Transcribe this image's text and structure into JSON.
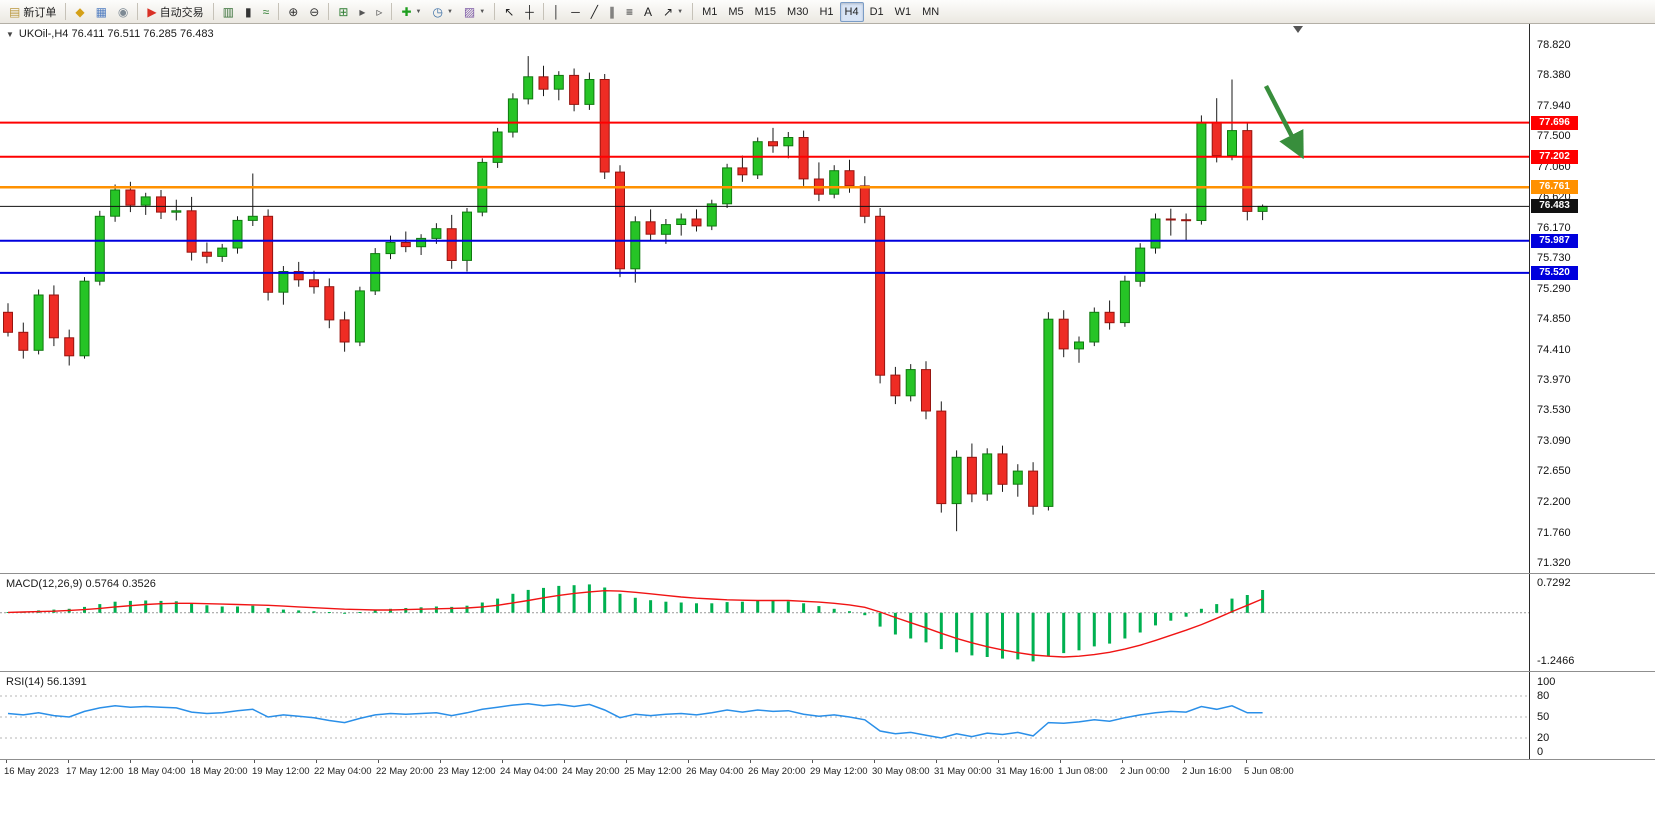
{
  "window": {
    "badge_count": "1"
  },
  "toolbar": {
    "items": [
      {
        "name": "new-order-button",
        "icon": "new-order-icon",
        "glyph": "▤",
        "glyph_color": "#b9973e",
        "label": "新订单"
      },
      {
        "sep": true
      },
      {
        "name": "charts-button",
        "icon": "chart-window-icon",
        "glyph": "◆",
        "glyph_color": "#d4a017"
      },
      {
        "name": "profiles-button",
        "icon": "profiles-icon",
        "glyph": "▦",
        "glyph_color": "#4f7cc0"
      },
      {
        "name": "data-window-button",
        "icon": "data-window-icon",
        "glyph": "◉",
        "glyph_color": "#7e8a94"
      },
      {
        "sep": true
      },
      {
        "name": "autotrading-button",
        "icon": "autotrading-icon",
        "glyph": "▶",
        "glyph_color": "#d93025",
        "label": "自动交易"
      },
      {
        "sep": true
      },
      {
        "name": "bar-chart-button",
        "icon": "bar-chart-icon",
        "glyph": "▥",
        "glyph_color": "#356e35"
      },
      {
        "name": "candlestick-chart-button",
        "icon": "candlestick-icon",
        "glyph": "▮",
        "glyph_color": "#333333"
      },
      {
        "name": "line-chart-button",
        "icon": "line-chart-icon",
        "glyph": "≈",
        "glyph_color": "#2f7d2f"
      },
      {
        "sep": true
      },
      {
        "name": "zoom-in-button",
        "icon": "zoom-in-icon",
        "glyph": "⊕",
        "glyph_color": "#333333"
      },
      {
        "name": "zoom-out-button",
        "icon": "zoom-out-icon",
        "glyph": "⊖",
        "glyph_color": "#333333"
      },
      {
        "sep": true
      },
      {
        "name": "tile-windows-button",
        "icon": "tile-windows-icon",
        "glyph": "⊞",
        "glyph_color": "#2e7d32"
      },
      {
        "name": "auto-scroll-button",
        "icon": "auto-scroll-icon",
        "glyph": "▸",
        "glyph_color": "#555555"
      },
      {
        "name": "chart-shift-button",
        "icon": "chart-shift-icon",
        "glyph": "▹",
        "glyph_color": "#555555"
      },
      {
        "sep": true
      },
      {
        "name": "indicators-button",
        "icon": "indicators-plus-icon",
        "glyph": "✚",
        "glyph_color": "#1e9e1e",
        "dropdown": true
      },
      {
        "name": "periods-button",
        "icon": "clock-icon",
        "glyph": "◷",
        "glyph_color": "#3a6ea5",
        "dropdown": true
      },
      {
        "name": "templates-button",
        "icon": "template-icon",
        "glyph": "▨",
        "glyph_color": "#7d5ba6",
        "dropdown": true
      },
      {
        "sep": true
      },
      {
        "name": "cursor-button",
        "icon": "cursor-icon",
        "glyph": "↖",
        "glyph_color": "#222222"
      },
      {
        "name": "crosshair-button",
        "icon": "crosshair-icon",
        "glyph": "┼",
        "glyph_color": "#222222"
      },
      {
        "sep": true
      },
      {
        "name": "vertical-line-button",
        "icon": "vertical-line-icon",
        "glyph": "│",
        "glyph_color": "#222222"
      },
      {
        "name": "horizontal-line-button",
        "icon": "horizontal-line-icon",
        "glyph": "─",
        "glyph_color": "#222222"
      },
      {
        "name": "trendline-button",
        "icon": "trendline-icon",
        "glyph": "╱",
        "glyph_color": "#222222"
      },
      {
        "name": "channel-button",
        "icon": "channel-icon",
        "glyph": "∥",
        "glyph_color": "#222222"
      },
      {
        "name": "fibonacci-button",
        "icon": "fibonacci-icon",
        "glyph": "≡",
        "glyph_color": "#222222"
      },
      {
        "name": "text-button",
        "icon": "text-icon",
        "glyph": "A",
        "glyph_color": "#222222"
      },
      {
        "name": "arrows-button",
        "icon": "arrow-objects-icon",
        "glyph": "↗",
        "glyph_color": "#222222",
        "dropdown": true
      },
      {
        "sep": true
      },
      {
        "name": "timeframe-m1-button",
        "label": "M1"
      },
      {
        "name": "timeframe-m5-button",
        "label": "M5"
      },
      {
        "name": "timeframe-m15-button",
        "label": "M15"
      },
      {
        "name": "timeframe-m30-button",
        "label": "M30"
      },
      {
        "name": "timeframe-h1-button",
        "label": "H1"
      },
      {
        "name": "timeframe-h4-button",
        "label": "H4",
        "active": true
      },
      {
        "name": "timeframe-d1-button",
        "label": "D1"
      },
      {
        "name": "timeframe-w1-button",
        "label": "W1"
      },
      {
        "name": "timeframe-mn-button",
        "label": "MN"
      }
    ]
  },
  "chart": {
    "one_click_icon": "▼",
    "symbol_label": "UKOil-,H4",
    "ohlc_label": "76.411 76.511 76.285 76.483",
    "hlines": [
      {
        "price": 77.696,
        "label": "77.696",
        "color": "#fe0000",
        "width": 2
      },
      {
        "price": 77.202,
        "label": "77.202",
        "color": "#fe0000",
        "width": 2
      },
      {
        "price": 76.761,
        "label": "76.761",
        "color": "#ff9100",
        "width": 2.5
      },
      {
        "price": 76.483,
        "label": "76.483",
        "color": "#111111",
        "width": 1,
        "current": true
      },
      {
        "price": 75.987,
        "label": "75.987",
        "color": "#0000dd",
        "width": 2
      },
      {
        "price": 75.52,
        "label": "75.520",
        "color": "#0000dd",
        "width": 2
      }
    ]
  },
  "indicators": {
    "macd": {
      "title": "MACD(12,26,9)",
      "main_value": "0.5764",
      "signal_value": "0.3526"
    },
    "rsi": {
      "title": "RSI(14)",
      "value": "56.1391"
    }
  },
  "colors": {
    "candle_up": "#26c426",
    "candle_up_stroke": "#0f7a0f",
    "candle_down": "#ee2c24",
    "candle_down_stroke": "#971510",
    "wick": "#1a1a1a",
    "macd_histogram": "#00b050",
    "macd_signal": "#f01414",
    "rsi_line": "#2a8fe8",
    "arrow": "#388e3c"
  },
  "chart_data": [
    {
      "type": "candlestick",
      "title": "UKOil- H4",
      "ylim": [
        71.32,
        78.93
      ],
      "y_tick_labels": [
        "78.820",
        "78.380",
        "77.940",
        "77.500",
        "77.060",
        "76.620",
        "76.170",
        "75.730",
        "75.290",
        "74.850",
        "74.410",
        "73.970",
        "73.530",
        "73.090",
        "72.650",
        "72.200",
        "71.760",
        "71.320"
      ],
      "x_tick_labels": [
        "16 May 2023",
        "17 May 12:00",
        "18 May 04:00",
        "18 May 20:00",
        "19 May 12:00",
        "22 May 04:00",
        "22 May 20:00",
        "23 May 12:00",
        "24 May 04:00",
        "24 May 20:00",
        "25 May 12:00",
        "26 May 04:00",
        "26 May 20:00",
        "29 May 12:00",
        "30 May 08:00",
        "31 May 00:00",
        "31 May 16:00",
        "1 Jun 08:00",
        "2 Jun 00:00",
        "2 Jun 16:00",
        "5 Jun 08:00"
      ],
      "levels": [
        77.696,
        77.202,
        76.761,
        76.483,
        75.987,
        75.52
      ],
      "ohlc": [
        [
          74.95,
          75.08,
          74.6,
          74.66
        ],
        [
          74.66,
          74.8,
          74.28,
          74.4
        ],
        [
          74.4,
          75.28,
          74.34,
          75.2
        ],
        [
          75.2,
          75.34,
          74.46,
          74.58
        ],
        [
          74.58,
          74.7,
          74.18,
          74.32
        ],
        [
          74.32,
          75.46,
          74.28,
          75.4
        ],
        [
          75.4,
          76.42,
          75.34,
          76.34
        ],
        [
          76.34,
          76.8,
          76.26,
          76.72
        ],
        [
          76.72,
          76.84,
          76.4,
          76.5
        ],
        [
          76.5,
          76.68,
          76.36,
          76.62
        ],
        [
          76.62,
          76.72,
          76.3,
          76.4
        ],
        [
          76.4,
          76.58,
          76.28,
          76.42
        ],
        [
          76.42,
          76.62,
          75.7,
          75.82
        ],
        [
          75.82,
          75.96,
          75.66,
          75.76
        ],
        [
          75.76,
          75.94,
          75.68,
          75.88
        ],
        [
          75.88,
          76.34,
          75.8,
          76.28
        ],
        [
          76.28,
          76.96,
          76.2,
          76.34
        ],
        [
          76.34,
          76.44,
          75.12,
          75.24
        ],
        [
          75.24,
          75.62,
          75.06,
          75.54
        ],
        [
          75.54,
          75.68,
          75.32,
          75.42
        ],
        [
          75.42,
          75.55,
          75.22,
          75.32
        ],
        [
          75.32,
          75.44,
          74.72,
          74.84
        ],
        [
          74.84,
          74.96,
          74.38,
          74.52
        ],
        [
          74.52,
          75.32,
          74.46,
          75.26
        ],
        [
          75.26,
          75.88,
          75.2,
          75.8
        ],
        [
          75.8,
          76.06,
          75.72,
          75.96
        ],
        [
          75.96,
          76.12,
          75.82,
          75.9
        ],
        [
          75.9,
          76.08,
          75.78,
          76.02
        ],
        [
          76.02,
          76.24,
          75.94,
          76.16
        ],
        [
          76.16,
          76.36,
          75.58,
          75.7
        ],
        [
          75.7,
          76.46,
          75.54,
          76.4
        ],
        [
          76.4,
          77.18,
          76.34,
          77.12
        ],
        [
          77.12,
          77.62,
          77.04,
          77.56
        ],
        [
          77.56,
          78.12,
          77.48,
          78.04
        ],
        [
          78.04,
          78.66,
          77.96,
          78.36
        ],
        [
          78.36,
          78.52,
          78.08,
          78.18
        ],
        [
          78.18,
          78.44,
          78.02,
          78.38
        ],
        [
          78.38,
          78.48,
          77.86,
          77.96
        ],
        [
          77.96,
          78.42,
          77.88,
          78.32
        ],
        [
          78.32,
          78.4,
          76.88,
          76.98
        ],
        [
          76.98,
          77.08,
          75.46,
          75.58
        ],
        [
          75.58,
          76.34,
          75.38,
          76.26
        ],
        [
          76.26,
          76.44,
          75.98,
          76.08
        ],
        [
          76.08,
          76.3,
          75.94,
          76.22
        ],
        [
          76.22,
          76.38,
          76.06,
          76.3
        ],
        [
          76.3,
          76.44,
          76.12,
          76.2
        ],
        [
          76.2,
          76.58,
          76.14,
          76.52
        ],
        [
          76.52,
          77.1,
          76.46,
          77.04
        ],
        [
          77.04,
          77.22,
          76.84,
          76.94
        ],
        [
          76.94,
          77.48,
          76.88,
          77.42
        ],
        [
          77.42,
          77.62,
          77.26,
          77.36
        ],
        [
          77.36,
          77.56,
          77.18,
          77.48
        ],
        [
          77.48,
          77.58,
          76.78,
          76.88
        ],
        [
          76.88,
          77.12,
          76.56,
          76.66
        ],
        [
          76.66,
          77.08,
          76.6,
          77.0
        ],
        [
          77.0,
          77.16,
          76.68,
          76.78
        ],
        [
          76.78,
          76.92,
          76.24,
          76.34
        ],
        [
          76.34,
          76.46,
          73.92,
          74.04
        ],
        [
          74.04,
          74.16,
          73.62,
          73.74
        ],
        [
          73.74,
          74.2,
          73.66,
          74.12
        ],
        [
          74.12,
          74.24,
          73.4,
          73.52
        ],
        [
          73.52,
          73.66,
          72.05,
          72.18
        ],
        [
          72.18,
          72.95,
          71.78,
          72.85
        ],
        [
          72.85,
          73.05,
          72.2,
          72.32
        ],
        [
          72.32,
          72.98,
          72.22,
          72.9
        ],
        [
          72.9,
          73.02,
          72.35,
          72.46
        ],
        [
          72.46,
          72.75,
          72.28,
          72.65
        ],
        [
          72.65,
          72.78,
          72.02,
          72.14
        ],
        [
          72.14,
          74.95,
          72.08,
          74.85
        ],
        [
          74.85,
          74.98,
          74.3,
          74.42
        ],
        [
          74.42,
          74.6,
          74.22,
          74.52
        ],
        [
          74.52,
          75.02,
          74.46,
          74.95
        ],
        [
          74.95,
          75.12,
          74.7,
          74.8
        ],
        [
          74.8,
          75.48,
          74.74,
          75.4
        ],
        [
          75.4,
          75.95,
          75.32,
          75.88
        ],
        [
          75.88,
          76.38,
          75.8,
          76.3
        ],
        [
          76.3,
          76.45,
          76.06,
          76.29
        ],
        [
          76.29,
          76.38,
          75.98,
          76.28
        ],
        [
          76.28,
          77.8,
          76.22,
          77.7
        ],
        [
          77.7,
          78.05,
          77.12,
          77.22
        ],
        [
          77.22,
          78.32,
          77.15,
          77.58
        ],
        [
          77.58,
          77.7,
          76.28,
          76.41
        ],
        [
          76.411,
          76.511,
          76.285,
          76.483
        ]
      ]
    },
    {
      "type": "macd",
      "title": "MACD(12,26,9)",
      "ylim": [
        -1.2466,
        0.7292
      ],
      "scale_labels": [
        "0.7292",
        "-1.2466"
      ],
      "current_main": 0.5764,
      "current_signal": 0.3526,
      "histogram": [
        0.02,
        0.03,
        0.06,
        0.08,
        0.1,
        0.15,
        0.22,
        0.28,
        0.3,
        0.31,
        0.3,
        0.29,
        0.24,
        0.19,
        0.16,
        0.16,
        0.18,
        0.12,
        0.08,
        0.06,
        0.04,
        0.02,
        0.0,
        0.02,
        0.06,
        0.1,
        0.12,
        0.14,
        0.16,
        0.15,
        0.18,
        0.26,
        0.36,
        0.48,
        0.58,
        0.63,
        0.68,
        0.7,
        0.72,
        0.64,
        0.48,
        0.38,
        0.32,
        0.28,
        0.26,
        0.24,
        0.24,
        0.27,
        0.28,
        0.3,
        0.3,
        0.29,
        0.24,
        0.17,
        0.1,
        0.04,
        -0.06,
        -0.35,
        -0.55,
        -0.65,
        -0.75,
        -0.92,
        -1.0,
        -1.08,
        -1.12,
        -1.16,
        -1.18,
        -1.23,
        -1.1,
        -1.02,
        -0.95,
        -0.85,
        -0.78,
        -0.65,
        -0.5,
        -0.32,
        -0.2,
        -0.1,
        0.1,
        0.22,
        0.36,
        0.45,
        0.5764
      ],
      "signal": [
        0.01,
        0.02,
        0.03,
        0.04,
        0.06,
        0.08,
        0.11,
        0.15,
        0.18,
        0.21,
        0.23,
        0.24,
        0.24,
        0.23,
        0.22,
        0.21,
        0.2,
        0.19,
        0.17,
        0.15,
        0.13,
        0.11,
        0.09,
        0.08,
        0.07,
        0.07,
        0.08,
        0.09,
        0.1,
        0.11,
        0.12,
        0.15,
        0.19,
        0.25,
        0.31,
        0.38,
        0.44,
        0.49,
        0.53,
        0.56,
        0.55,
        0.52,
        0.48,
        0.44,
        0.4,
        0.37,
        0.35,
        0.33,
        0.32,
        0.31,
        0.31,
        0.31,
        0.29,
        0.27,
        0.24,
        0.2,
        0.14,
        0.02,
        -0.12,
        -0.25,
        -0.38,
        -0.52,
        -0.65,
        -0.76,
        -0.86,
        -0.94,
        -1.01,
        -1.07,
        -1.1,
        -1.12,
        -1.1,
        -1.06,
        -1.0,
        -0.92,
        -0.82,
        -0.7,
        -0.57,
        -0.44,
        -0.3,
        -0.14,
        0.03,
        0.19,
        0.3526
      ]
    },
    {
      "type": "line",
      "title": "RSI(14)",
      "ylim": [
        0,
        100
      ],
      "levels": [
        80,
        50,
        20
      ],
      "scale_labels": [
        "100",
        "80",
        "50",
        "20",
        "0"
      ],
      "current": 56.1391,
      "values": [
        55,
        53,
        56,
        52,
        50,
        58,
        63,
        66,
        64,
        65,
        64,
        63,
        57,
        55,
        56,
        59,
        61,
        50,
        53,
        51,
        49,
        45,
        42,
        48,
        53,
        55,
        54,
        55,
        56,
        52,
        56,
        61,
        64,
        67,
        69,
        66,
        68,
        65,
        68,
        60,
        49,
        54,
        52,
        54,
        55,
        53,
        56,
        60,
        57,
        60,
        58,
        59,
        54,
        51,
        53,
        50,
        46,
        30,
        26,
        28,
        24,
        20,
        26,
        22,
        27,
        25,
        28,
        23,
        42,
        41,
        43,
        46,
        44,
        49,
        53,
        56,
        58,
        57,
        65,
        61,
        66,
        56,
        56.14
      ]
    }
  ]
}
